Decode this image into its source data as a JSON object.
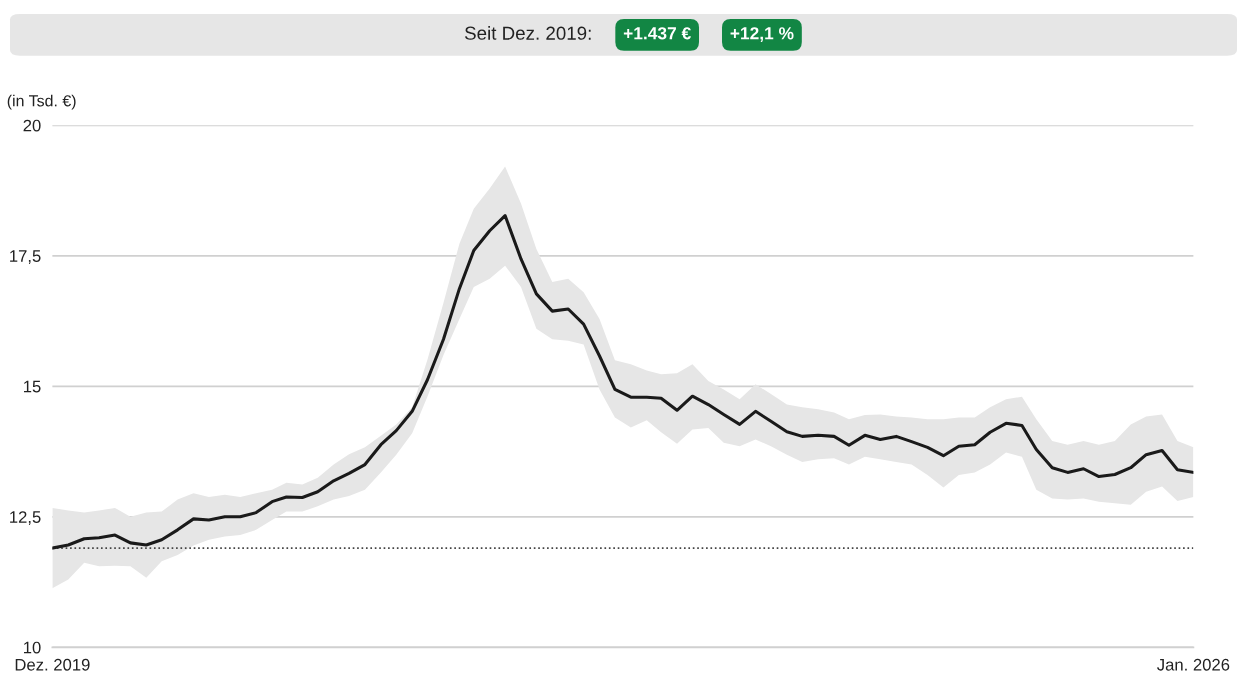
{
  "chart_data": {
    "type": "line",
    "annotations": [
      "Seit Dez. 2019:",
      "+1.437 €",
      "+12,1 %"
    ],
    "ylabel": "(in Tsd. €)",
    "x": [
      "2019-12",
      "2020-01",
      "2020-02",
      "2020-03",
      "2020-04",
      "2020-05",
      "2020-06",
      "2020-07",
      "2020-08",
      "2020-09",
      "2020-10",
      "2020-11",
      "2020-12",
      "2021-01",
      "2021-02",
      "2021-03",
      "2021-04",
      "2021-05",
      "2021-06",
      "2021-07",
      "2021-08",
      "2021-09",
      "2021-10",
      "2021-11",
      "2021-12",
      "2022-01",
      "2022-02",
      "2022-03",
      "2022-04",
      "2022-05",
      "2022-06",
      "2022-07",
      "2022-08",
      "2022-09",
      "2022-10",
      "2022-11",
      "2022-12",
      "2023-01",
      "2023-02",
      "2023-03",
      "2023-04",
      "2023-05",
      "2023-06",
      "2023-07",
      "2023-08",
      "2023-09",
      "2023-10",
      "2023-11",
      "2023-12",
      "2024-01",
      "2024-02",
      "2024-03",
      "2024-04",
      "2024-05",
      "2024-06",
      "2024-07",
      "2024-08",
      "2024-09",
      "2024-10",
      "2024-11",
      "2024-12",
      "2025-01",
      "2025-02",
      "2025-03",
      "2025-04",
      "2025-05",
      "2025-06",
      "2025-07",
      "2025-08",
      "2025-09",
      "2025-10",
      "2025-11",
      "2025-12",
      "2026-01"
    ],
    "series": [
      {
        "color": "#1a1a1a",
        "values": [
          11.9,
          11.96,
          12.08,
          12.1,
          12.15,
          12.0,
          11.96,
          12.06,
          12.25,
          12.46,
          12.44,
          12.5,
          12.5,
          12.58,
          12.79,
          12.88,
          12.87,
          12.98,
          13.19,
          13.33,
          13.5,
          13.88,
          14.15,
          14.52,
          15.13,
          15.9,
          16.87,
          17.6,
          17.98,
          18.27,
          17.44,
          16.77,
          16.44,
          16.48,
          16.19,
          15.58,
          14.94,
          14.79,
          14.79,
          14.77,
          14.54,
          14.81,
          14.65,
          14.46,
          14.27,
          14.52,
          14.33,
          14.13,
          14.04,
          14.06,
          14.04,
          13.87,
          14.06,
          13.98,
          14.04,
          13.94,
          13.83,
          13.67,
          13.85,
          13.88,
          14.12,
          14.29,
          14.25,
          13.79,
          13.44,
          13.35,
          13.42,
          13.27,
          13.31,
          13.44,
          13.69,
          13.77,
          13.4,
          13.35
        ],
        "upper": [
          12.67,
          12.62,
          12.58,
          12.62,
          12.67,
          12.5,
          12.58,
          12.6,
          12.83,
          12.95,
          12.88,
          12.92,
          12.88,
          12.95,
          13.02,
          13.15,
          13.12,
          13.25,
          13.5,
          13.7,
          13.83,
          14.05,
          14.27,
          14.6,
          15.52,
          16.6,
          17.73,
          18.4,
          18.79,
          19.21,
          18.5,
          17.63,
          17.0,
          17.06,
          16.8,
          16.29,
          15.5,
          15.42,
          15.3,
          15.23,
          15.25,
          15.42,
          15.1,
          14.94,
          14.75,
          15.04,
          14.85,
          14.65,
          14.6,
          14.56,
          14.5,
          14.37,
          14.45,
          14.46,
          14.42,
          14.4,
          14.37,
          14.37,
          14.4,
          14.4,
          14.6,
          14.75,
          14.8,
          14.37,
          13.95,
          13.88,
          13.95,
          13.88,
          13.95,
          14.27,
          14.42,
          14.46,
          13.95,
          13.83
        ],
        "lower": [
          11.13,
          11.3,
          11.62,
          11.55,
          11.56,
          11.55,
          11.33,
          11.65,
          11.77,
          11.95,
          12.06,
          12.12,
          12.15,
          12.25,
          12.44,
          12.6,
          12.6,
          12.7,
          12.83,
          12.9,
          13.02,
          13.35,
          13.69,
          14.1,
          14.81,
          15.6,
          16.29,
          16.9,
          17.06,
          17.31,
          16.9,
          16.1,
          15.9,
          15.87,
          15.8,
          14.94,
          14.4,
          14.21,
          14.35,
          14.12,
          13.9,
          14.17,
          14.2,
          13.92,
          13.85,
          13.98,
          13.85,
          13.69,
          13.55,
          13.6,
          13.62,
          13.5,
          13.65,
          13.6,
          13.55,
          13.5,
          13.3,
          13.06,
          13.3,
          13.35,
          13.5,
          13.73,
          13.65,
          13.02,
          12.85,
          12.83,
          12.85,
          12.79,
          12.76,
          12.73,
          12.98,
          13.08,
          12.8,
          12.88
        ]
      }
    ],
    "xlim": [
      "2019-12",
      "2026-01"
    ],
    "xticks": [
      {
        "value": "2019-12",
        "label": "Dez. 2019"
      },
      {
        "value": "2026-01",
        "label": "Jan. 2026"
      }
    ],
    "ylim": [
      10,
      20
    ],
    "yticks": [
      10,
      {
        "value": 12.5,
        "label": "12,5"
      },
      15,
      {
        "value": 17.5,
        "label": "17,5"
      },
      20
    ],
    "ref_lines": [
      {
        "axis": "y",
        "value": 11.9,
        "color": "#444444",
        "line_style": "dotted"
      }
    ],
    "grid": "y",
    "line_style": "solid",
    "marker": "none"
  }
}
